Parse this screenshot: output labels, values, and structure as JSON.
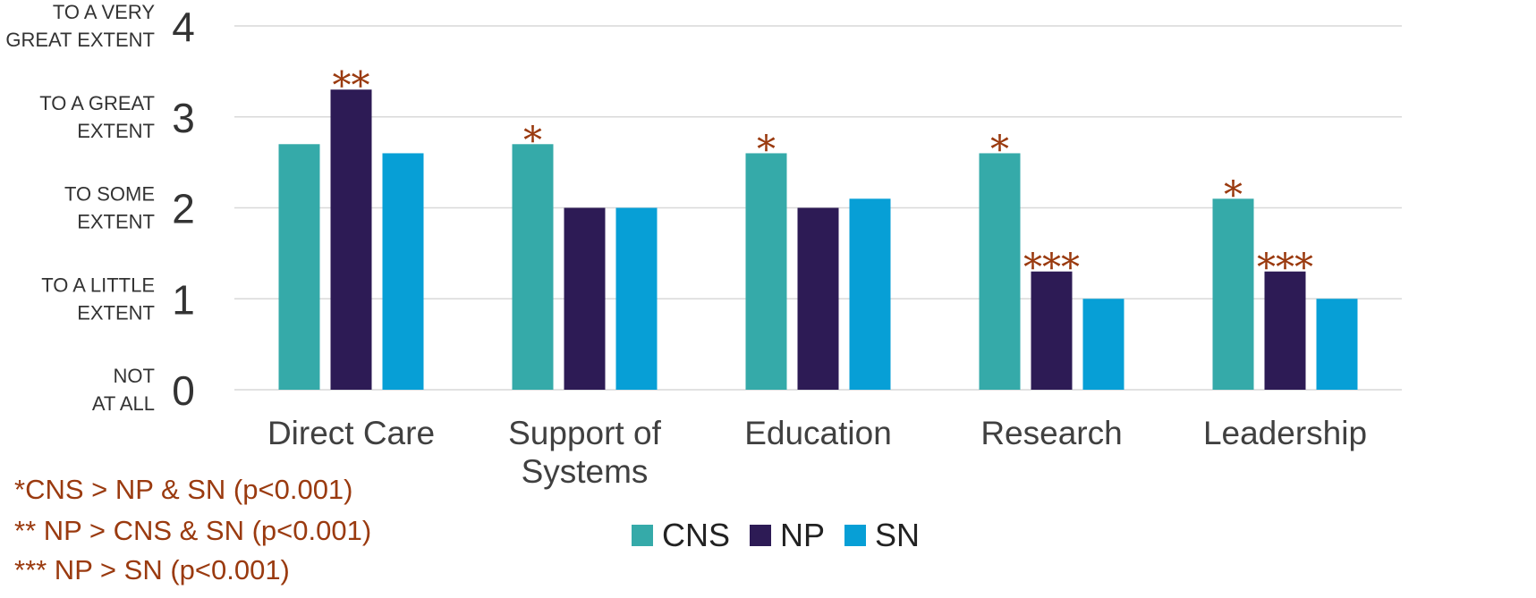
{
  "chart_data": {
    "type": "bar",
    "categories": [
      "Direct Care",
      "Support of Systems",
      "Education",
      "Research",
      "Leadership"
    ],
    "series": [
      {
        "name": "CNS",
        "values": [
          2.7,
          2.7,
          2.6,
          2.6,
          2.1
        ],
        "color": "#35aaa9"
      },
      {
        "name": "NP",
        "values": [
          3.3,
          2.0,
          2.0,
          1.3,
          1.3
        ],
        "color": "#2d1b55"
      },
      {
        "name": "SN",
        "values": [
          2.6,
          2.0,
          2.1,
          1.0,
          1.0
        ],
        "color": "#079fd6"
      }
    ],
    "ylim": [
      0,
      4
    ],
    "yticks": [
      0,
      1,
      2,
      3,
      4
    ],
    "ytick_text_labels": [
      [
        "NOT",
        "AT ALL"
      ],
      [
        "TO A LITTLE",
        "EXTENT"
      ],
      [
        "TO SOME",
        "EXTENT"
      ],
      [
        "TO A GREAT",
        "EXTENT"
      ],
      [
        "TO A VERY",
        "GREAT EXTENT"
      ]
    ],
    "grid": true,
    "legend_position": "bottom-center",
    "significance_markers": [
      {
        "category": "Direct Care",
        "series": "NP",
        "text": "**"
      },
      {
        "category": "Support of Systems",
        "series": "CNS",
        "text": "*"
      },
      {
        "category": "Education",
        "series": "CNS",
        "text": "*"
      },
      {
        "category": "Research",
        "series": "CNS",
        "text": "*"
      },
      {
        "category": "Research",
        "series": "NP",
        "text": "***"
      },
      {
        "category": "Leadership",
        "series": "CNS",
        "text": "*"
      },
      {
        "category": "Leadership",
        "series": "NP",
        "text": "***"
      }
    ],
    "marker_color": "#9a3a0f"
  },
  "notes": {
    "note1": "*CNS > NP & SN (p<0.001)",
    "note2": "** NP > CNS & SN (p<0.001)",
    "note3": "*** NP > SN (p<0.001)"
  }
}
